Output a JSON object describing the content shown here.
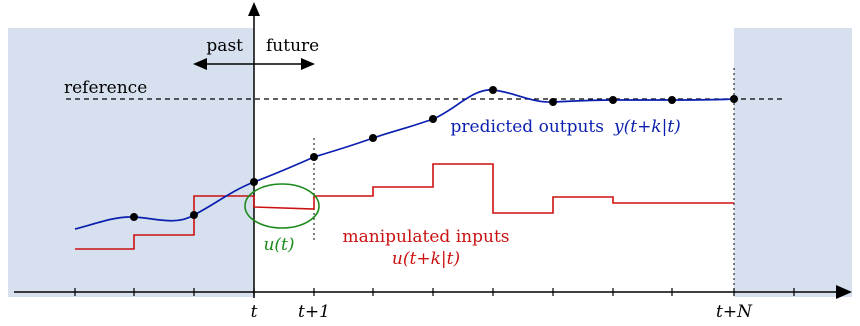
{
  "labels": {
    "past": "past",
    "future": "future",
    "reference": "reference",
    "predicted_outputs": "predicted outputs",
    "predicted_outputs_math": "y(t+k|t)",
    "control_label": "u(t)",
    "manipulated_inputs": "manipulated inputs",
    "manipulated_inputs_math": "u(t+k|t)"
  },
  "ticks": {
    "t": "t",
    "t_plus_1": "t+1",
    "t_plus_N": "t+N"
  },
  "colors": {
    "shaded_region": "#d6e0ee",
    "output_curve": "#0a1fb0",
    "input_signal": "#cc1111",
    "control_ellipse": "#1b8a1b",
    "axis": "#000000"
  },
  "icons": {
    "time_arrow": "double-headed-arrow"
  }
}
